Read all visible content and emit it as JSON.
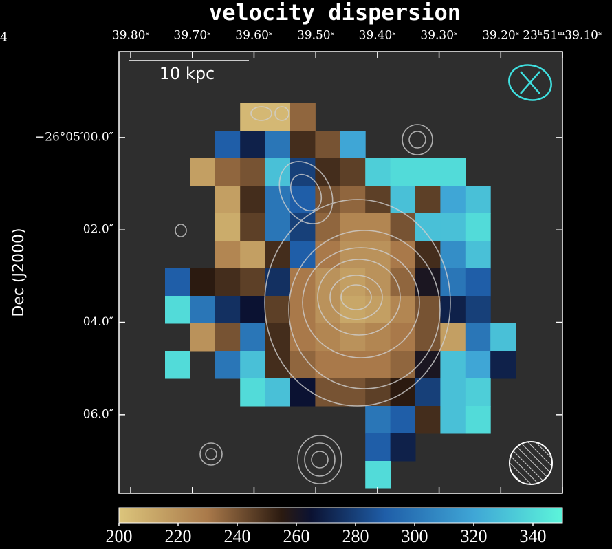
{
  "chart_data": {
    "type": "heatmap",
    "title": "velocity dispersion",
    "ylabel": "Dec (J2000)",
    "scalebar_label": "10 kpc",
    "edge_label": "4",
    "xlim": [
      39.819,
      39.1
    ],
    "ylim": [
      -1.86,
      7.7
    ],
    "xticks": [
      {
        "value": 39.8,
        "label": "39.80ˢ"
      },
      {
        "value": 39.7,
        "label": "39.70ˢ"
      },
      {
        "value": 39.6,
        "label": "39.60ˢ"
      },
      {
        "value": 39.5,
        "label": "39.50ˢ"
      },
      {
        "value": 39.4,
        "label": "39.40ˢ"
      },
      {
        "value": 39.3,
        "label": "39.30ˢ"
      },
      {
        "value": 39.2,
        "label": "39.20ˢ"
      },
      {
        "value": 39.1,
        "label": "23ʰ51ᵐ39.10ˢ"
      }
    ],
    "yticks": [
      {
        "value": 0,
        "label": "−26°05′00.0″"
      },
      {
        "value": 2,
        "label": "02.0″"
      },
      {
        "value": 4,
        "label": "04.0″"
      },
      {
        "value": 6,
        "label": "06.0″"
      }
    ],
    "colorbar": {
      "lim": [
        200,
        350
      ],
      "ticks": [
        200,
        220,
        240,
        260,
        280,
        300,
        320,
        340
      ],
      "colormap": [
        {
          "value": 200,
          "color": "#dcc57c"
        },
        {
          "value": 230,
          "color": "#a9794a"
        },
        {
          "value": 255,
          "color": "#2b1a10"
        },
        {
          "value": 265,
          "color": "#0b1232"
        },
        {
          "value": 290,
          "color": "#1f5ea8"
        },
        {
          "value": 320,
          "color": "#3fa6d6"
        },
        {
          "value": 350,
          "color": "#5cf5da"
        }
      ]
    },
    "values": [
      [
        null,
        null,
        null,
        205,
        205,
        235,
        null,
        null,
        null,
        null,
        null,
        null,
        null,
        null
      ],
      [
        null,
        null,
        290,
        270,
        300,
        250,
        240,
        320,
        null,
        null,
        null,
        null,
        null,
        null
      ],
      [
        null,
        215,
        235,
        240,
        330,
        280,
        250,
        245,
        335,
        340,
        340,
        340,
        null,
        null
      ],
      [
        null,
        null,
        215,
        250,
        300,
        290,
        240,
        235,
        245,
        330,
        245,
        320,
        330,
        null
      ],
      [
        null,
        null,
        210,
        245,
        300,
        280,
        235,
        225,
        225,
        240,
        330,
        330,
        340,
        null
      ],
      [
        null,
        null,
        225,
        215,
        250,
        290,
        230,
        220,
        220,
        230,
        250,
        310,
        330,
        null
      ],
      [
        290,
        255,
        250,
        245,
        275,
        230,
        220,
        215,
        220,
        235,
        260,
        300,
        290,
        null
      ],
      [
        340,
        300,
        275,
        265,
        245,
        230,
        220,
        212,
        215,
        225,
        240,
        270,
        280,
        null
      ],
      [
        null,
        220,
        240,
        300,
        250,
        230,
        225,
        220,
        225,
        230,
        240,
        215,
        300,
        330
      ],
      [
        340,
        null,
        300,
        330,
        250,
        235,
        230,
        230,
        230,
        235,
        260,
        330,
        320,
        270
      ],
      [
        null,
        null,
        null,
        340,
        330,
        265,
        240,
        240,
        245,
        255,
        280,
        330,
        335,
        null
      ],
      [
        null,
        null,
        null,
        null,
        null,
        null,
        null,
        null,
        300,
        290,
        250,
        330,
        340,
        null
      ],
      [
        null,
        null,
        null,
        null,
        null,
        null,
        null,
        null,
        290,
        270,
        null,
        null,
        null,
        null
      ],
      [
        null,
        null,
        null,
        null,
        null,
        null,
        null,
        null,
        340,
        null,
        null,
        null,
        null,
        null
      ]
    ]
  }
}
